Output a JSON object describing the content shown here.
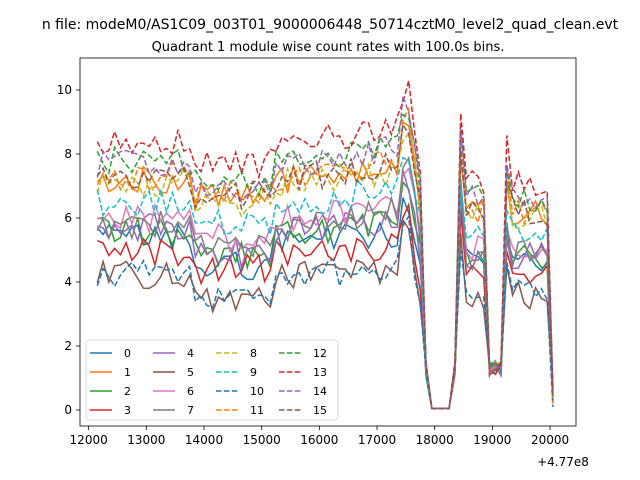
{
  "figure": {
    "suptitle": "n file: modeM0/AS1C09_003T01_9000006448_50714cztM0_level2_quad_clean.evt"
  },
  "chart_data": {
    "type": "line",
    "title": "Quadrant 1 module wise count rates with 100.0s bins.",
    "xlabel": "",
    "ylabel": "",
    "offset_text": "+4.77e8",
    "xlim": [
      11850,
      20450
    ],
    "ylim": [
      -0.5,
      11.0
    ],
    "xticks": [
      12000,
      13000,
      14000,
      15000,
      16000,
      17000,
      18000,
      19000,
      20000
    ],
    "xtick_labels": [
      "12000",
      "13000",
      "14000",
      "15000",
      "16000",
      "17000",
      "18000",
      "19000",
      "20000"
    ],
    "yticks": [
      0,
      2,
      4,
      6,
      8,
      10
    ],
    "ytick_labels": [
      "0",
      "2",
      "4",
      "6",
      "8",
      "10"
    ],
    "grid": false,
    "legend": {
      "placement": "lower-left",
      "columns": 4
    },
    "x": {
      "start": 12150,
      "step": 100,
      "count": 80
    },
    "gaps": [
      [
        17850,
        18350
      ],
      [
        18950,
        19150
      ]
    ],
    "series": [
      {
        "name": "0",
        "color": "#1f77b4",
        "dash": "solid",
        "base": 5.4,
        "ramp": 0.0,
        "dip": 0.9,
        "seed": 11
      },
      {
        "name": "1",
        "color": "#ff7f0e",
        "dash": "solid",
        "base": 7.2,
        "ramp": 0.4,
        "dip": 0.6,
        "seed": 23
      },
      {
        "name": "2",
        "color": "#2ca02c",
        "dash": "solid",
        "base": 5.6,
        "ramp": 0.3,
        "dip": 0.8,
        "seed": 37
      },
      {
        "name": "3",
        "color": "#d62728",
        "dash": "solid",
        "base": 4.9,
        "ramp": 0.2,
        "dip": 0.5,
        "seed": 41
      },
      {
        "name": "4",
        "color": "#9467bd",
        "dash": "solid",
        "base": 5.7,
        "ramp": 0.3,
        "dip": 0.8,
        "seed": 53
      },
      {
        "name": "5",
        "color": "#8c564b",
        "dash": "solid",
        "base": 4.2,
        "ramp": 0.2,
        "dip": 0.7,
        "seed": 67
      },
      {
        "name": "6",
        "color": "#e377c2",
        "dash": "solid",
        "base": 6.0,
        "ramp": 0.4,
        "dip": 0.6,
        "seed": 71
      },
      {
        "name": "7",
        "color": "#7f7f7f",
        "dash": "solid",
        "base": 5.8,
        "ramp": 0.6,
        "dip": 0.6,
        "seed": 83
      },
      {
        "name": "8",
        "color": "#bcbd22",
        "dash": "dashed",
        "base": 7.1,
        "ramp": 0.3,
        "dip": 0.6,
        "seed": 97
      },
      {
        "name": "9",
        "color": "#17becf",
        "dash": "dashed",
        "base": 6.5,
        "ramp": 0.5,
        "dip": 0.7,
        "seed": 101
      },
      {
        "name": "10",
        "color": "#1f77b4",
        "dash": "dashed",
        "base": 4.3,
        "ramp": 0.1,
        "dip": 0.9,
        "seed": 113
      },
      {
        "name": "11",
        "color": "#ff7f0e",
        "dash": "dashed",
        "base": 7.3,
        "ramp": 0.5,
        "dip": 0.6,
        "seed": 127
      },
      {
        "name": "12",
        "color": "#2ca02c",
        "dash": "dashed",
        "base": 7.8,
        "ramp": 0.4,
        "dip": 0.7,
        "seed": 131
      },
      {
        "name": "13",
        "color": "#d62728",
        "dash": "dashed",
        "base": 8.4,
        "ramp": 0.4,
        "dip": 0.7,
        "seed": 149
      },
      {
        "name": "14",
        "color": "#9467bd",
        "dash": "dashed",
        "base": 7.7,
        "ramp": 0.5,
        "dip": 0.7,
        "seed": 151
      },
      {
        "name": "15",
        "color": "#8c564b",
        "dash": "dashed",
        "base": 7.3,
        "ramp": 0.4,
        "dip": 0.6,
        "seed": 163
      }
    ]
  }
}
